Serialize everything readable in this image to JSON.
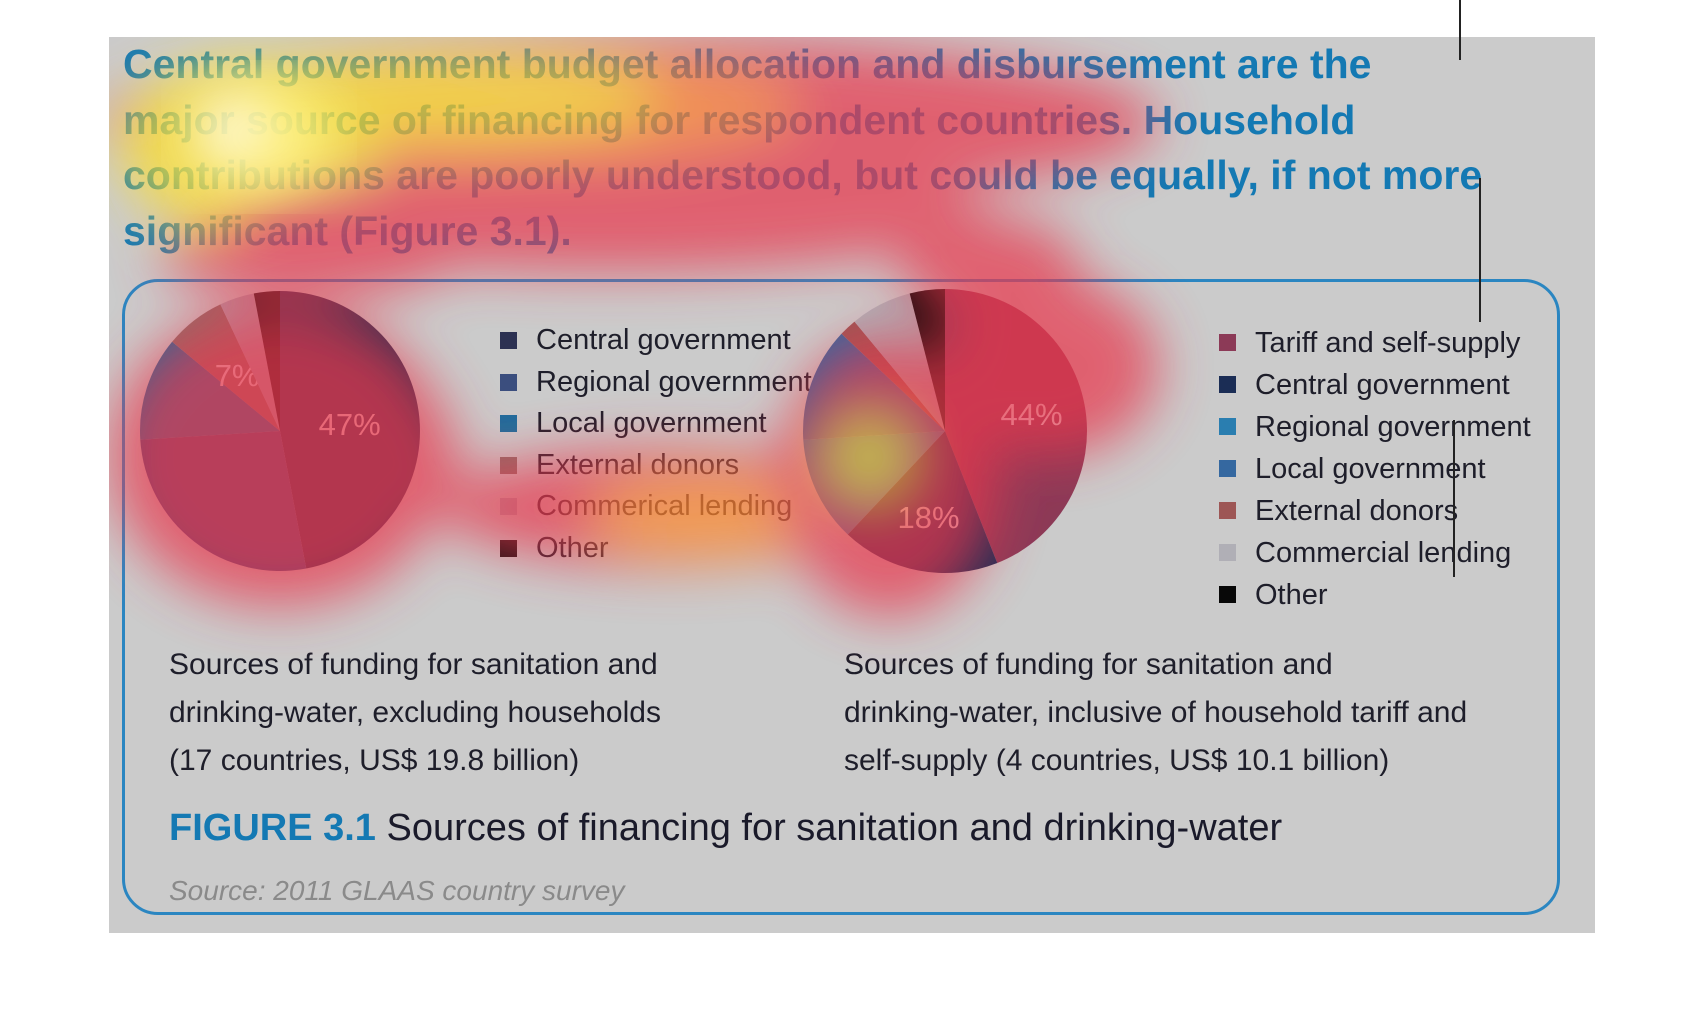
{
  "headline": "Central government budget allocation and disbursement are the major source of financing for respondent countries. Household contributions are poorly understood, but could be equally, if not more significant (Figure 3.1).",
  "chart_data": [
    {
      "type": "pie",
      "title": "Sources of funding for sanitation and drinking-water, excluding households (17 countries, US$ 19.8 billion)",
      "categories": [
        "Central government",
        "Regional government",
        "Local government",
        "External donors",
        "Commerical lending",
        "Other"
      ],
      "values": [
        47,
        27,
        12,
        7,
        4,
        3
      ],
      "data_labels": [
        "47%",
        "",
        "",
        "7%",
        "",
        ""
      ],
      "colors": [
        "#2c3152",
        "#3b4e7e",
        "#1f6d9c",
        "#8c6f6b",
        "#aaa5b0",
        "#1c1214"
      ],
      "legend": "right"
    },
    {
      "type": "pie",
      "title": "Sources of funding for sanitation and drinking-water, inclusive of household tariff and self-supply (4 countries, US$ 10.1 billion)",
      "categories": [
        "Tariff and self-supply",
        "Central government",
        "Regional government",
        "Local government",
        "External donors",
        "Commercial lending",
        "Other"
      ],
      "values": [
        44,
        18,
        12,
        13,
        2,
        7,
        4
      ],
      "data_labels": [
        "44%",
        "18%",
        "",
        "",
        "",
        "",
        ""
      ],
      "colors": [
        "#8c3a57",
        "#1b2d55",
        "#2a7eb0",
        "#3568a0",
        "#9d5655",
        "#b0afb6",
        "#080808"
      ],
      "legend": "right"
    }
  ],
  "captions": [
    [
      "Sources of funding for sanitation and",
      "drinking-water, excluding households",
      "(17 countries, US$ 19.8 billion)"
    ],
    [
      "Sources of funding for sanitation and",
      "drinking-water, inclusive of household tariff and",
      "self-supply (4 countries, US$ 10.1 billion)"
    ]
  ],
  "figure": {
    "label": "FIGURE 3.1",
    "title": "Sources of financing for sanitation and drinking-water",
    "source": "Source: 2011 GLAAS country survey"
  }
}
